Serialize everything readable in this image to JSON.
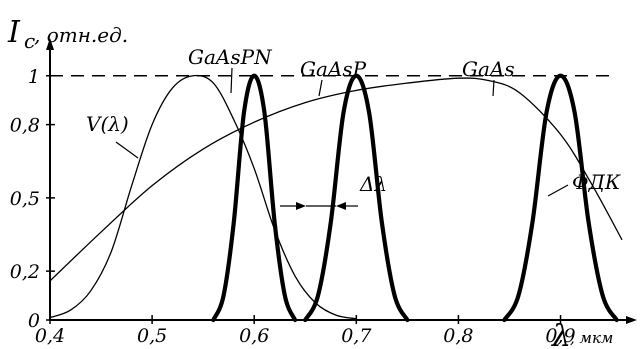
{
  "chart_data": {
    "type": "line",
    "ylabel_main": "I",
    "ylabel_sub": "c",
    "ylabel_unit": ", отн.ед.",
    "xlabel_symbol": "λ",
    "xlabel_unit": ", мкм",
    "xlim": [
      0.4,
      0.97
    ],
    "ylim": [
      0,
      1.13
    ],
    "xticks": [
      "0,4",
      "0,5",
      "0,6",
      "0,7",
      "0,8",
      "0,9"
    ],
    "xtick_values": [
      0.4,
      0.5,
      0.6,
      0.7,
      0.8,
      0.9
    ],
    "yticks": [
      "0",
      "0,2",
      "0,5",
      "0,8",
      "1"
    ],
    "ytick_values": [
      0,
      0.2,
      0.5,
      0.8,
      1
    ],
    "reference_line_y": 1,
    "series": [
      {
        "name": "V(λ)",
        "style": "thin",
        "x": [
          0.4,
          0.42,
          0.44,
          0.46,
          0.48,
          0.5,
          0.52,
          0.54,
          0.56,
          0.58,
          0.6,
          0.62,
          0.64,
          0.66,
          0.68,
          0.7
        ],
        "y": [
          0.01,
          0.04,
          0.12,
          0.28,
          0.55,
          0.8,
          0.95,
          1.0,
          0.97,
          0.82,
          0.62,
          0.37,
          0.18,
          0.07,
          0.02,
          0.005
        ]
      },
      {
        "name": "ФДК",
        "style": "thin",
        "x": [
          0.4,
          0.45,
          0.5,
          0.55,
          0.6,
          0.65,
          0.7,
          0.75,
          0.8,
          0.83,
          0.86,
          0.9,
          0.93,
          0.96
        ],
        "y": [
          0.16,
          0.36,
          0.55,
          0.7,
          0.81,
          0.89,
          0.94,
          0.97,
          0.99,
          0.98,
          0.93,
          0.76,
          0.56,
          0.33
        ]
      },
      {
        "name": "GaAsPN",
        "style": "bold",
        "x": [
          0.56,
          0.57,
          0.58,
          0.59,
          0.6,
          0.61,
          0.62,
          0.63,
          0.64
        ],
        "y": [
          0.0,
          0.1,
          0.4,
          0.85,
          1.0,
          0.85,
          0.4,
          0.1,
          0.0
        ]
      },
      {
        "name": "GaAsP",
        "style": "bold",
        "x": [
          0.65,
          0.6625,
          0.675,
          0.6875,
          0.7,
          0.7125,
          0.725,
          0.7375,
          0.75
        ],
        "y": [
          0.0,
          0.1,
          0.4,
          0.85,
          1.0,
          0.85,
          0.4,
          0.1,
          0.0
        ]
      },
      {
        "name": "GaAs",
        "style": "bold",
        "x": [
          0.845,
          0.8588,
          0.8725,
          0.8863,
          0.9,
          0.9138,
          0.9275,
          0.9413,
          0.955
        ],
        "y": [
          0.0,
          0.1,
          0.4,
          0.85,
          1.0,
          0.85,
          0.4,
          0.1,
          0.0
        ]
      }
    ],
    "annotations": {
      "delta_lambda": "Δλ"
    }
  }
}
